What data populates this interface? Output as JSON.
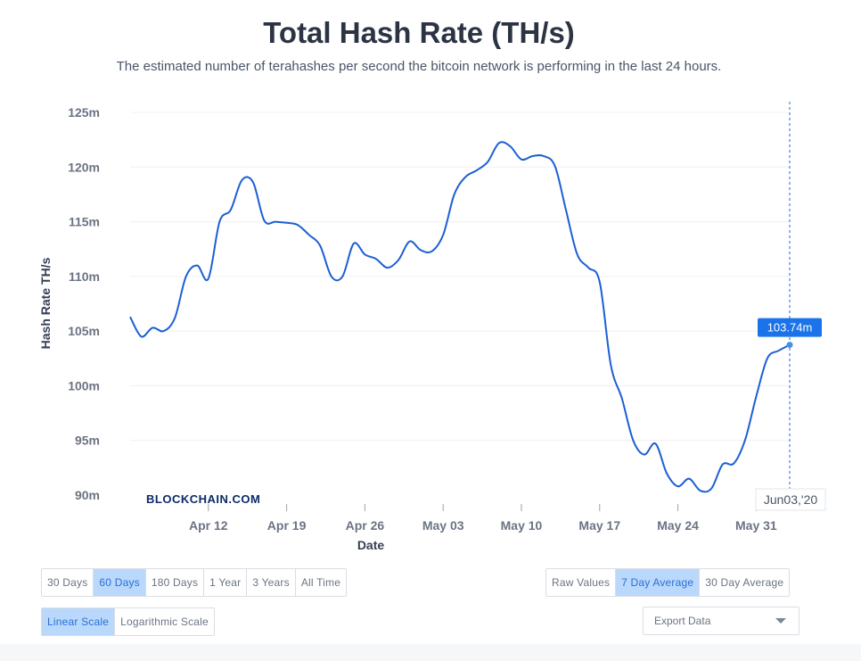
{
  "header": {
    "title": "Total Hash Rate (TH/s)",
    "subtitle": "The estimated number of terahashes per second the bitcoin network is performing in the last 24 hours."
  },
  "watermark": "BLOCKCHAIN.COM",
  "colors": {
    "line": "#1c5fd4",
    "grid": "#eef0f3",
    "tooltip_bg": "#1a73e8",
    "active_button": "#b9d8fb"
  },
  "chart_data": {
    "type": "line",
    "title": "Total Hash Rate (TH/s)",
    "xlabel": "Date",
    "ylabel": "Hash Rate TH/s",
    "ylim": [
      90,
      125
    ],
    "yticks": [
      90,
      95,
      100,
      105,
      110,
      115,
      120,
      125
    ],
    "ytick_labels": [
      "90m",
      "95m",
      "100m",
      "105m",
      "110m",
      "115m",
      "120m",
      "125m"
    ],
    "xticks": [
      "2020-04-12",
      "2020-04-19",
      "2020-04-26",
      "2020-05-03",
      "2020-05-10",
      "2020-05-17",
      "2020-05-24",
      "2020-05-31"
    ],
    "xtick_labels": [
      "Apr 12",
      "Apr 19",
      "Apr 26",
      "May 03",
      "May 10",
      "May 17",
      "May 24",
      "May 31"
    ],
    "grid": true,
    "series": [
      {
        "values_unit": "millions TH/s",
        "x": [
          "2020-04-05",
          "2020-04-06",
          "2020-04-07",
          "2020-04-08",
          "2020-04-09",
          "2020-04-10",
          "2020-04-11",
          "2020-04-12",
          "2020-04-13",
          "2020-04-14",
          "2020-04-15",
          "2020-04-16",
          "2020-04-17",
          "2020-04-18",
          "2020-04-19",
          "2020-04-20",
          "2020-04-21",
          "2020-04-22",
          "2020-04-23",
          "2020-04-24",
          "2020-04-25",
          "2020-04-26",
          "2020-04-27",
          "2020-04-28",
          "2020-04-29",
          "2020-04-30",
          "2020-05-01",
          "2020-05-02",
          "2020-05-03",
          "2020-05-04",
          "2020-05-05",
          "2020-05-06",
          "2020-05-07",
          "2020-05-08",
          "2020-05-09",
          "2020-05-10",
          "2020-05-11",
          "2020-05-12",
          "2020-05-13",
          "2020-05-14",
          "2020-05-15",
          "2020-05-16",
          "2020-05-17",
          "2020-05-18",
          "2020-05-19",
          "2020-05-20",
          "2020-05-21",
          "2020-05-22",
          "2020-05-23",
          "2020-05-24",
          "2020-05-25",
          "2020-05-26",
          "2020-05-27",
          "2020-05-28",
          "2020-05-29",
          "2020-05-30",
          "2020-05-31",
          "2020-06-01",
          "2020-06-02",
          "2020-06-03"
        ],
        "y": [
          106.3,
          104.5,
          105.3,
          105.0,
          106.2,
          110.0,
          111.0,
          109.8,
          115.0,
          116.1,
          118.8,
          118.6,
          115.1,
          115.0,
          114.9,
          114.7,
          113.8,
          112.8,
          110.0,
          110.0,
          113.0,
          112.0,
          111.6,
          110.8,
          111.5,
          113.2,
          112.4,
          112.3,
          113.8,
          117.5,
          119.1,
          119.7,
          120.5,
          122.2,
          121.9,
          120.7,
          121.0,
          121.0,
          120.1,
          116.0,
          112.0,
          110.8,
          109.5,
          101.9,
          98.8,
          95.0,
          93.7,
          94.7,
          92.0,
          90.8,
          91.5,
          90.4,
          90.6,
          92.8,
          92.9,
          95.0,
          99.0,
          102.5,
          103.2,
          103.74
        ]
      }
    ],
    "tooltip": {
      "date_label": "Jun03,'20",
      "value_label": "103.74m"
    }
  },
  "controls": {
    "timespan": [
      "30 Days",
      "60 Days",
      "180 Days",
      "1 Year",
      "3 Years",
      "All Time"
    ],
    "timespan_active": 1,
    "averaging": [
      "Raw Values",
      "7 Day Average",
      "30 Day Average"
    ],
    "averaging_active": 1,
    "scale": [
      "Linear Scale",
      "Logarithmic Scale"
    ],
    "scale_active": 0,
    "export_label": "Export Data"
  }
}
